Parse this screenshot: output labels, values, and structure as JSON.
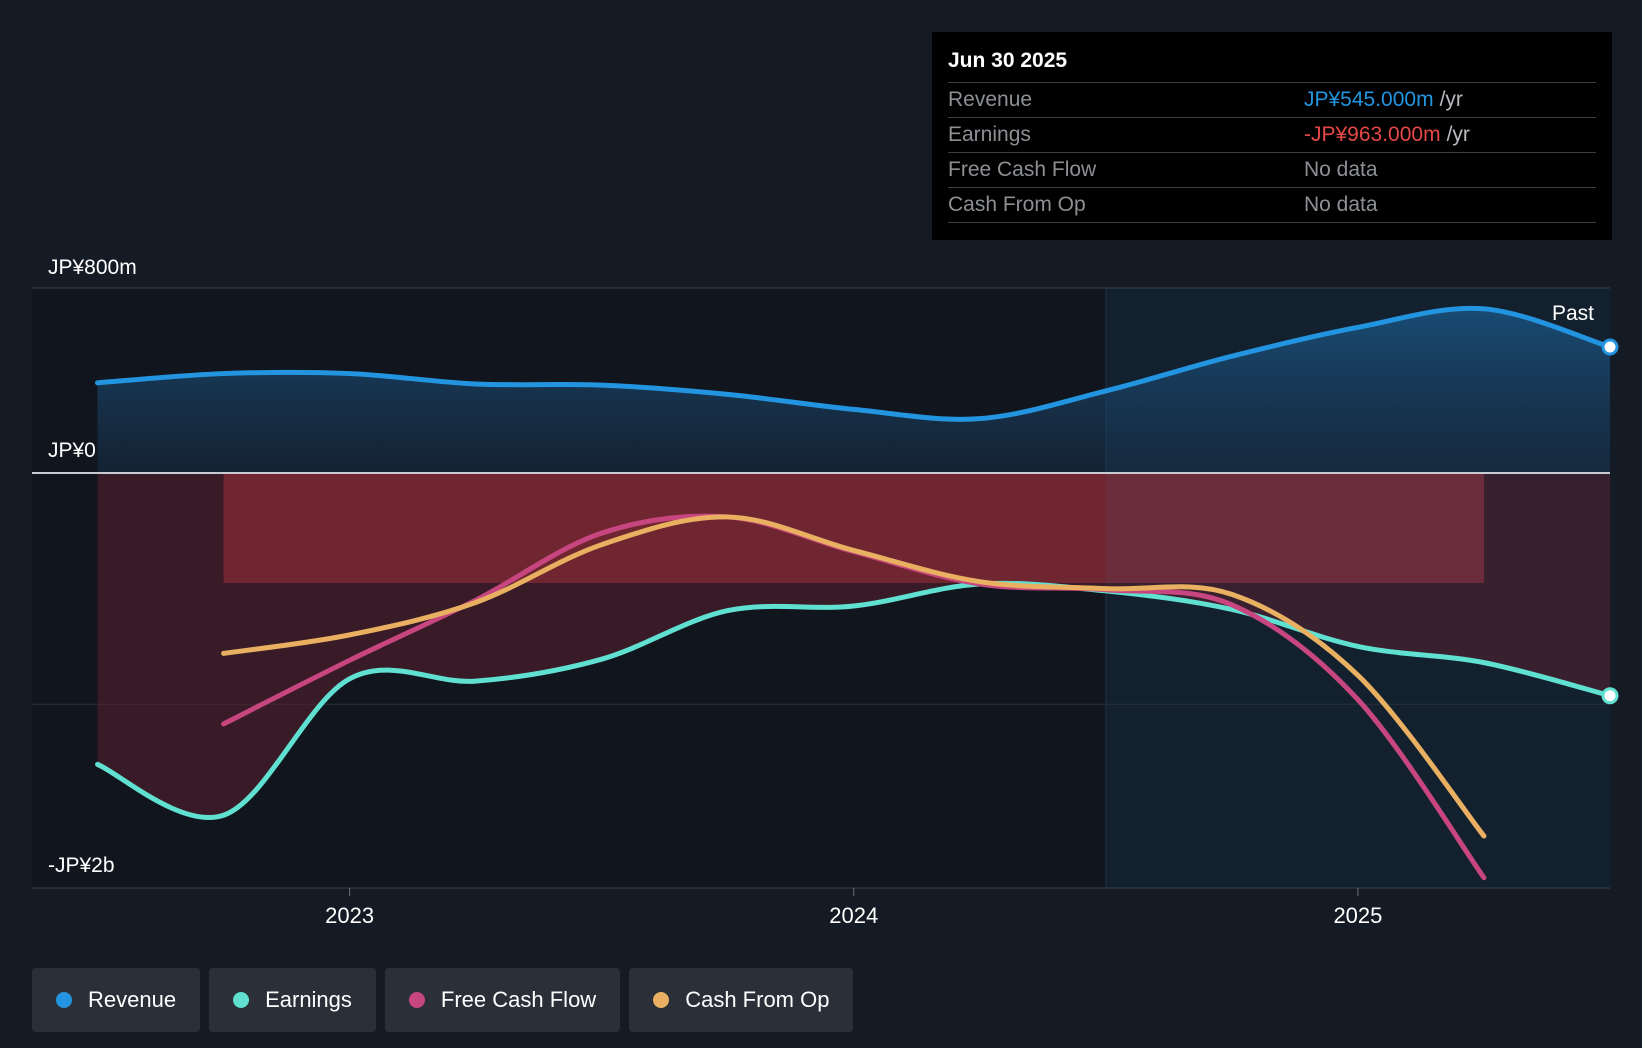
{
  "tooltip": {
    "date": "Jun 30 2025",
    "rows": [
      {
        "label": "Revenue",
        "value": "JP¥545.000m",
        "unit": "/yr",
        "color": "#2394df"
      },
      {
        "label": "Earnings",
        "value": "-JP¥963.000m",
        "unit": "/yr",
        "color": "#e64848"
      },
      {
        "label": "Free Cash Flow",
        "value": "No data",
        "unit": "",
        "color": "#8c8f94"
      },
      {
        "label": "Cash From Op",
        "value": "No data",
        "unit": "",
        "color": "#8c8f94"
      }
    ]
  },
  "legend": [
    {
      "label": "Revenue",
      "color": "#2394df"
    },
    {
      "label": "Earnings",
      "color": "#60e0d0"
    },
    {
      "label": "Free Cash Flow",
      "color": "#c8467f"
    },
    {
      "label": "Cash From Op",
      "color": "#e8b060"
    }
  ],
  "chart_data": {
    "type": "line",
    "title": "",
    "y_unit": "JP¥ millions",
    "ylim": [
      -1800,
      800
    ],
    "y_tick_labels": [
      "JP¥800m",
      "JP¥0",
      "-JP¥2b"
    ],
    "x_tick_labels": [
      "2023",
      "2024",
      "2025"
    ],
    "x_ticks": [
      2023.0,
      2024.0,
      2025.0
    ],
    "xlim": [
      2022.37,
      2025.5
    ],
    "past_label": "Past",
    "forecast_start": 2024.5,
    "series": [
      {
        "name": "Revenue",
        "color": "#2394df",
        "x": [
          2022.5,
          2022.75,
          2023.0,
          2023.25,
          2023.5,
          2023.75,
          2024.0,
          2024.25,
          2024.5,
          2024.75,
          2025.0,
          2025.25,
          2025.5
        ],
        "values": [
          390,
          430,
          430,
          385,
          380,
          340,
          275,
          235,
          355,
          505,
          630,
          710,
          545
        ]
      },
      {
        "name": "Earnings",
        "color": "#60e0d0",
        "x": [
          2022.5,
          2022.75,
          2023.0,
          2023.25,
          2023.5,
          2023.75,
          2024.0,
          2024.25,
          2024.5,
          2024.75,
          2025.0,
          2025.25,
          2025.5
        ],
        "values": [
          -1260,
          -1480,
          -890,
          -900,
          -805,
          -595,
          -575,
          -480,
          -510,
          -590,
          -750,
          -820,
          -963
        ]
      },
      {
        "name": "Free Cash Flow",
        "color": "#c8467f",
        "x": [
          2022.75,
          2023.0,
          2023.25,
          2023.5,
          2023.75,
          2024.0,
          2024.25,
          2024.5,
          2024.75,
          2025.0,
          2025.25
        ],
        "values": [
          -1085,
          -810,
          -550,
          -260,
          -190,
          -340,
          -480,
          -505,
          -570,
          -980,
          -1750
        ]
      },
      {
        "name": "Cash From Op",
        "color": "#e8b060",
        "x": [
          2022.75,
          2023.0,
          2023.25,
          2023.5,
          2023.75,
          2024.0,
          2024.25,
          2024.5,
          2024.75,
          2025.0,
          2025.25
        ],
        "values": [
          -780,
          -700,
          -560,
          -310,
          -190,
          -335,
          -470,
          -500,
          -525,
          -875,
          -1570
        ]
      }
    ]
  }
}
